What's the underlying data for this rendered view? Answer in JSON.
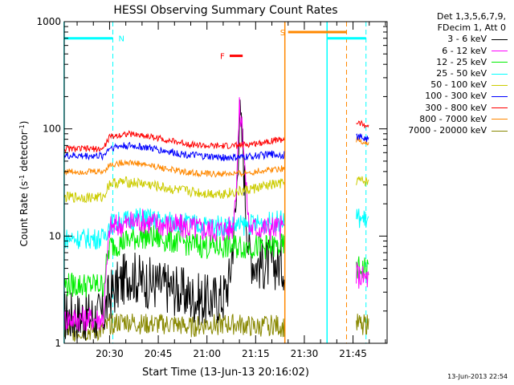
{
  "chart_data": {
    "type": "line",
    "title": "HESSI Observing Summary Count Rates",
    "xlabel": "Start Time (13-Jun-13 20:16:02)",
    "ylabel": "Count Rate (s^-1 detector^-1)",
    "ylabel_base": "Count Rate (s",
    "ylabel_exp1": "-1",
    "ylabel_mid": " detector",
    "ylabel_exp2": "-1",
    "ylabel_end": ")",
    "y_scale": "log",
    "ylim": [
      1,
      1000
    ],
    "xlim": [
      "20:16:02",
      "21:55:30"
    ],
    "x_ticks": [
      "20:30",
      "20:45",
      "21:00",
      "21:15",
      "21:30",
      "21:45"
    ],
    "y_ticks": [
      "1",
      "10",
      "100",
      "1000"
    ],
    "legend_header": [
      "Det 1,3,5,6,7,9,",
      "FDecim 1, Att 0"
    ],
    "legend_position": "right",
    "series": [
      {
        "name": "3 - 6 keV",
        "color": "#000000",
        "x": [
          "20:16",
          "20:28",
          "20:30",
          "20:33",
          "20:36",
          "20:40",
          "20:45",
          "20:50",
          "20:55",
          "21:00",
          "21:05",
          "21:07",
          "21:09",
          "21:10",
          "21:11",
          "21:12",
          "21:13",
          "21:15",
          "21:20",
          "21:24"
        ],
        "y": [
          1.8,
          1.8,
          2.8,
          3.5,
          4.5,
          3.8,
          3.5,
          3.2,
          2.7,
          2.5,
          2.7,
          4,
          20,
          140,
          70,
          18,
          7,
          5.5,
          5.5,
          5.5
        ]
      },
      {
        "name": "6 - 12 keV",
        "color": "#ff00ff",
        "x": [
          "20:16",
          "20:28",
          "20:30",
          "20:35",
          "20:40",
          "20:45",
          "20:50",
          "20:55",
          "21:00",
          "21:05",
          "21:08",
          "21:09",
          "21:10",
          "21:11",
          "21:12",
          "21:13",
          "21:15",
          "21:20",
          "21:24",
          "21:46",
          "21:47",
          "21:50"
        ],
        "y": [
          1.7,
          1.7,
          12,
          13,
          14,
          13,
          12.5,
          12,
          11.5,
          11.5,
          12,
          30,
          150,
          100,
          30,
          12,
          12,
          12,
          12,
          4.5,
          4.2,
          4
        ]
      },
      {
        "name": "12 - 25 keV",
        "color": "#00ee00",
        "x": [
          "20:16",
          "20:28",
          "20:30",
          "20:35",
          "20:40",
          "20:45",
          "20:50",
          "20:55",
          "21:00",
          "21:05",
          "21:10",
          "21:15",
          "21:20",
          "21:24",
          "21:46",
          "21:50"
        ],
        "y": [
          3.5,
          3.5,
          8,
          9,
          10,
          9.5,
          9,
          8.5,
          8,
          8,
          8,
          8,
          8,
          8,
          5,
          5
        ]
      },
      {
        "name": "25 - 50 keV",
        "color": "#00ffff",
        "x": [
          "20:16",
          "20:28",
          "20:30",
          "20:35",
          "20:40",
          "20:45",
          "20:50",
          "20:55",
          "21:00",
          "21:05",
          "21:10",
          "21:15",
          "21:20",
          "21:24",
          "21:46",
          "21:50"
        ],
        "y": [
          9.5,
          9.5,
          13,
          14,
          15,
          14,
          13.5,
          13,
          12.5,
          12.5,
          12.5,
          13,
          13.5,
          14,
          15,
          14
        ]
      },
      {
        "name": "50 - 100 keV",
        "color": "#cccc00",
        "x": [
          "20:16",
          "20:28",
          "20:30",
          "20:35",
          "20:40",
          "20:45",
          "20:50",
          "20:55",
          "21:00",
          "21:05",
          "21:10",
          "21:15",
          "21:20",
          "21:24",
          "21:46",
          "21:50"
        ],
        "y": [
          23,
          23,
          31,
          32,
          31,
          29,
          27,
          26,
          25,
          25,
          26,
          28,
          30,
          31,
          33,
          32
        ]
      },
      {
        "name": "100 - 300 keV",
        "color": "#0000ff",
        "x": [
          "20:16",
          "20:28",
          "20:30",
          "20:35",
          "20:40",
          "20:45",
          "20:50",
          "20:55",
          "21:00",
          "21:05",
          "21:10",
          "21:15",
          "21:20",
          "21:24",
          "21:46",
          "21:50"
        ],
        "y": [
          56,
          56,
          67,
          70,
          68,
          64,
          60,
          57,
          55,
          54,
          54,
          56,
          58,
          57,
          85,
          80
        ]
      },
      {
        "name": "300 - 800 keV",
        "color": "#ff0000",
        "x": [
          "20:16",
          "20:28",
          "20:30",
          "20:35",
          "20:40",
          "20:45",
          "20:50",
          "20:55",
          "21:00",
          "21:05",
          "21:10",
          "21:15",
          "21:20",
          "21:24",
          "21:46",
          "21:50"
        ],
        "y": [
          65,
          65,
          84,
          90,
          87,
          82,
          76,
          72,
          69,
          69,
          70,
          73,
          78,
          80,
          115,
          105
        ]
      },
      {
        "name": "800 - 7000 keV",
        "color": "#ff8800",
        "x": [
          "20:16",
          "20:28",
          "20:30",
          "20:35",
          "20:40",
          "20:45",
          "20:50",
          "20:55",
          "21:00",
          "21:05",
          "21:10",
          "21:15",
          "21:20",
          "21:24",
          "21:46",
          "21:50"
        ],
        "y": [
          40,
          40,
          46,
          49,
          47,
          44,
          41,
          39,
          38,
          38,
          38,
          40,
          42,
          43,
          80,
          72
        ]
      },
      {
        "name": "7000 - 20000 keV",
        "color": "#888800",
        "x": [
          "20:16",
          "20:28",
          "20:30",
          "20:35",
          "20:40",
          "20:45",
          "20:50",
          "20:55",
          "21:00",
          "21:05",
          "21:10",
          "21:15",
          "21:20",
          "21:24",
          "21:46",
          "21:50"
        ],
        "y": [
          1.3,
          1.3,
          1.5,
          1.6,
          1.5,
          1.5,
          1.5,
          1.4,
          1.5,
          1.5,
          1.5,
          1.4,
          1.5,
          1.4,
          1.5,
          1.5
        ]
      }
    ],
    "flags": [
      {
        "label": "N",
        "color": "#00ffff",
        "value": 700,
        "segments": [
          [
            "20:16",
            "20:31"
          ],
          [
            "21:37",
            "21:49"
          ]
        ]
      },
      {
        "label": "S",
        "color": "#ff8800",
        "value": 800,
        "segments": [
          [
            "21:25",
            "21:43"
          ]
        ]
      },
      {
        "label": "F",
        "color": "#ff0000",
        "value": 480,
        "segments": [
          [
            "21:07",
            "21:11"
          ]
        ]
      }
    ],
    "vlines_solid": [
      {
        "x": "20:16",
        "color": "#00ffff"
      },
      {
        "x": "21:24",
        "color": "#ff8800"
      },
      {
        "x": "21:37",
        "color": "#00ffff"
      }
    ],
    "vlines_dashed": [
      {
        "x": "20:31",
        "color": "#00ffff"
      },
      {
        "x": "21:43",
        "color": "#ff8800"
      },
      {
        "x": "21:49",
        "color": "#00ffff"
      }
    ],
    "gaps": [
      [
        "21:24",
        "21:46"
      ]
    ]
  },
  "footer_date": "13-Jun-2013 22:54"
}
